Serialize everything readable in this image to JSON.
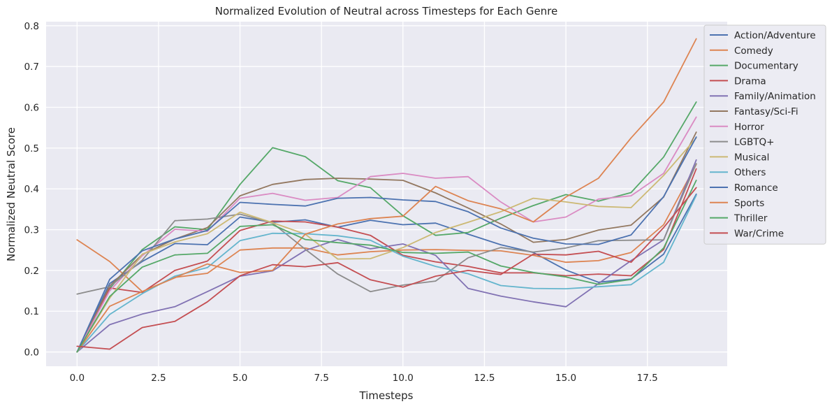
{
  "chart_data": {
    "type": "line",
    "title": "Normalized Evolution of Neutral across Timesteps for Each Genre",
    "xlabel": "Timesteps",
    "ylabel": "Normalized Neutral Score",
    "xlim": [
      -0.95,
      19.95
    ],
    "ylim": [
      -0.035,
      0.81
    ],
    "xticks": [
      0.0,
      2.5,
      5.0,
      7.5,
      10.0,
      12.5,
      15.0,
      17.5
    ],
    "xtick_labels": [
      "0.0",
      "2.5",
      "5.0",
      "7.5",
      "10.0",
      "12.5",
      "15.0",
      "17.5"
    ],
    "yticks": [
      0.0,
      0.1,
      0.2,
      0.3,
      0.4,
      0.5,
      0.6,
      0.7,
      0.8
    ],
    "ytick_labels": [
      "0.0",
      "0.1",
      "0.2",
      "0.3",
      "0.4",
      "0.5",
      "0.6",
      "0.7",
      "0.8"
    ],
    "grid": true,
    "legend_position": "upper-right outside",
    "background": "#eaeaf2",
    "x": [
      0,
      1,
      2,
      3,
      4,
      5,
      6,
      7,
      8,
      9,
      10,
      11,
      12,
      13,
      14,
      15,
      16,
      17,
      18,
      19
    ],
    "series": [
      {
        "name": "Action/Adventure",
        "color": "#4c72b0",
        "values": [
          0.0,
          0.168,
          0.222,
          0.266,
          0.263,
          0.331,
          0.318,
          0.324,
          0.306,
          0.323,
          0.312,
          0.316,
          0.289,
          0.263,
          0.244,
          0.201,
          0.171,
          0.179,
          0.24,
          0.387
        ]
      },
      {
        "name": "Comedy",
        "color": "#dd8452",
        "values": [
          0.275,
          0.222,
          0.148,
          0.183,
          0.193,
          0.25,
          0.255,
          0.255,
          0.238,
          0.246,
          0.25,
          0.251,
          0.249,
          0.248,
          0.237,
          0.22,
          0.224,
          0.244,
          0.312,
          0.46
        ]
      },
      {
        "name": "Documentary",
        "color": "#55a868",
        "values": [
          0.0,
          0.155,
          0.251,
          0.307,
          0.3,
          0.411,
          0.501,
          0.479,
          0.42,
          0.403,
          0.334,
          0.286,
          0.293,
          0.328,
          0.359,
          0.386,
          0.37,
          0.391,
          0.478,
          0.613
        ]
      },
      {
        "name": "Drama",
        "color": "#c44e52",
        "values": [
          0.0,
          0.157,
          0.146,
          0.2,
          0.223,
          0.298,
          0.321,
          0.319,
          0.306,
          0.286,
          0.237,
          0.221,
          0.21,
          0.194,
          0.194,
          0.187,
          0.191,
          0.187,
          0.251,
          0.449
        ]
      },
      {
        "name": "Family/Animation",
        "color": "#8172b3",
        "values": [
          0.0,
          0.067,
          0.093,
          0.111,
          0.148,
          0.186,
          0.199,
          0.249,
          0.276,
          0.253,
          0.265,
          0.237,
          0.156,
          0.137,
          0.123,
          0.111,
          0.168,
          0.224,
          0.275,
          0.471
        ]
      },
      {
        "name": "Fantasy/Sci-Fi",
        "color": "#937860",
        "values": [
          0.0,
          0.162,
          0.239,
          0.277,
          0.305,
          0.383,
          0.411,
          0.423,
          0.426,
          0.424,
          0.421,
          0.39,
          0.353,
          0.314,
          0.269,
          0.276,
          0.299,
          0.311,
          0.38,
          0.539
        ]
      },
      {
        "name": "Horror",
        "color": "#da8bc3",
        "values": [
          0.0,
          0.15,
          0.236,
          0.301,
          0.296,
          0.377,
          0.389,
          0.372,
          0.379,
          0.43,
          0.438,
          0.426,
          0.43,
          0.368,
          0.319,
          0.331,
          0.375,
          0.383,
          0.438,
          0.576
        ]
      },
      {
        "name": "LGBTQ+",
        "color": "#8c8c8c",
        "values": [
          0.142,
          0.16,
          0.225,
          0.322,
          0.326,
          0.338,
          0.316,
          0.252,
          0.191,
          0.148,
          0.164,
          0.174,
          0.231,
          0.256,
          0.245,
          0.255,
          0.273,
          0.274,
          0.275,
          0.462
        ]
      },
      {
        "name": "Musical",
        "color": "#ccb974",
        "values": [
          0.0,
          0.132,
          0.24,
          0.27,
          0.29,
          0.343,
          0.317,
          0.289,
          0.228,
          0.229,
          0.256,
          0.293,
          0.318,
          0.344,
          0.377,
          0.368,
          0.357,
          0.354,
          0.433,
          0.525
        ]
      },
      {
        "name": "Others",
        "color": "#64b5cd",
        "values": [
          0.0,
          0.092,
          0.143,
          0.186,
          0.207,
          0.273,
          0.291,
          0.29,
          0.285,
          0.274,
          0.235,
          0.21,
          0.192,
          0.163,
          0.156,
          0.155,
          0.16,
          0.165,
          0.22,
          0.384
        ]
      },
      {
        "name": "Romance",
        "color": "#4c72b0",
        "values": [
          0.0,
          0.178,
          0.248,
          0.277,
          0.298,
          0.367,
          0.362,
          0.358,
          0.377,
          0.379,
          0.373,
          0.369,
          0.344,
          0.304,
          0.279,
          0.265,
          0.264,
          0.287,
          0.381,
          0.527
        ]
      },
      {
        "name": "Sports",
        "color": "#dd8452",
        "values": [
          0.0,
          0.112,
          0.148,
          0.182,
          0.216,
          0.195,
          0.2,
          0.289,
          0.314,
          0.327,
          0.333,
          0.406,
          0.371,
          0.351,
          0.319,
          0.38,
          0.426,
          0.525,
          0.613,
          0.768
        ]
      },
      {
        "name": "Thriller",
        "color": "#55a868",
        "values": [
          0.0,
          0.136,
          0.208,
          0.238,
          0.242,
          0.308,
          0.312,
          0.276,
          0.268,
          0.262,
          0.244,
          0.242,
          0.245,
          0.211,
          0.195,
          0.184,
          0.166,
          0.178,
          0.255,
          0.421
        ]
      },
      {
        "name": "War/Crime",
        "color": "#c44e52",
        "values": [
          0.014,
          0.007,
          0.06,
          0.075,
          0.123,
          0.187,
          0.214,
          0.209,
          0.219,
          0.177,
          0.159,
          0.186,
          0.2,
          0.19,
          0.24,
          0.238,
          0.247,
          0.22,
          0.305,
          0.403
        ]
      }
    ]
  }
}
